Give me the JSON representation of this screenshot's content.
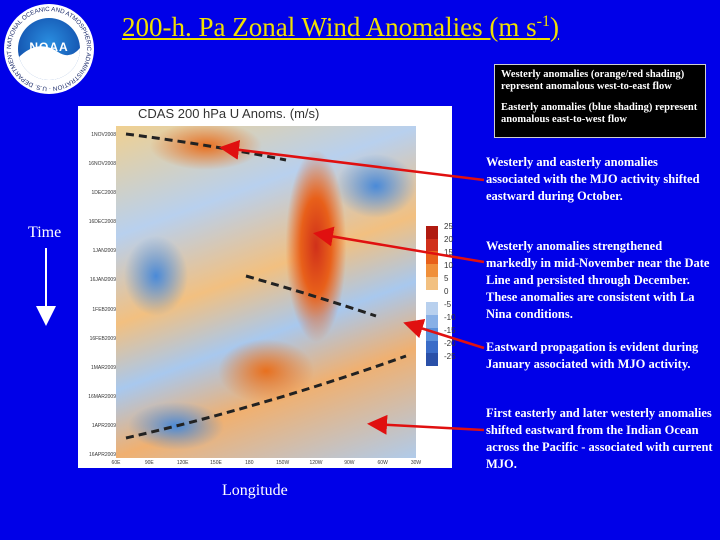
{
  "title_main": "200-h. Pa Zonal Wind Anomalies (m s",
  "title_sup": "-1",
  "title_close": ")",
  "logo": {
    "text": "NOAA",
    "ring": "NATIONAL OCEANIC AND ATMOSPHERIC ADMINISTRATION · U.S. DEPARTMENT OF COMMERCE"
  },
  "legend_box": {
    "westerly": "Westerly anomalies (orange/red shading) represent anomalous west-to-east flow",
    "easterly": "Easterly anomalies (blue shading) represent anomalous east-to-west flow"
  },
  "map": {
    "title": "CDAS 200 hPa U Anoms. (m/s)",
    "dates": [
      "1NOV2008",
      "16NOV2008",
      "1DEC2008",
      "16DEC2008",
      "1JAN2009",
      "16JAN2009",
      "1FEB2009",
      "16FEB2009",
      "1MAR2009",
      "16MAR2009",
      "1APR2009",
      "16APR2009"
    ],
    "longitudes": [
      "60E",
      "90E",
      "120E",
      "150E",
      "180",
      "150W",
      "120W",
      "90W",
      "60W",
      "30W"
    ],
    "colorbar_values": [
      "25",
      "20",
      "15",
      "10",
      "5",
      "0",
      "-5",
      "-10",
      "-15",
      "-20",
      "-25"
    ],
    "colorbar_colors": [
      "#b01a10",
      "#d0301a",
      "#e8601a",
      "#f0903a",
      "#f2c080",
      "#ffffff",
      "#b8d0ee",
      "#88b0e6",
      "#5a90da",
      "#3a6cc8",
      "#2a50a8"
    ]
  },
  "labels": {
    "time": "Time",
    "longitude": "Longitude"
  },
  "notes": [
    "Westerly and easterly anomalies associated with the MJO activity shifted eastward during October.",
    "Westerly anomalies strengthened markedly in mid-November near the Date Line and persisted through December. These anomalies are consistent with La Nina conditions.",
    "Eastward propagation is evident during January associated with MJO activity.",
    "First easterly and later westerly anomalies shifted eastward from the Indian Ocean across the Pacific - associated with current MJO."
  ],
  "colors": {
    "background": "#0000e8",
    "title": "#f0e000",
    "arrow": "#e01010"
  }
}
